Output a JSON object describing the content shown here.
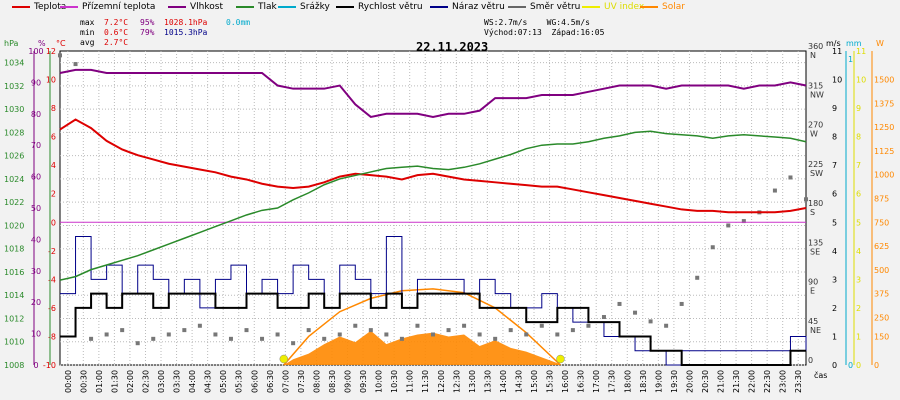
{
  "legend": [
    {
      "label": "Teplota",
      "color": "#dd0000"
    },
    {
      "label": "Přízemní teplota",
      "color": "#cc33cc"
    },
    {
      "label": "Vlhkost",
      "color": "#800080"
    },
    {
      "label": "Tlak",
      "color": "#2a8a2a"
    },
    {
      "label": "Srážky",
      "color": "#00aacc"
    },
    {
      "label": "Rychlost větru",
      "color": "#000000"
    },
    {
      "label": "Náraz větru",
      "color": "#000088"
    },
    {
      "label": "Směr větru",
      "color": "#666666"
    },
    {
      "label": "UV index",
      "color": "#eeee00"
    },
    {
      "label": "Solar",
      "color": "#ff8800"
    }
  ],
  "stats": {
    "max_label": "max",
    "min_label": "min",
    "avg_label": "avg",
    "max_temp": "7.2°C",
    "min_temp": "0.6°C",
    "avg_temp": "2.7°C",
    "max_hum": "95%",
    "min_hum": "79%",
    "max_press": "1028.1hPa",
    "min_press": "1015.3hPa",
    "rain": "0.0mm",
    "ws": "WS:2.7m/s",
    "wg": "WG:4.5m/s",
    "sunrise": "Východ:07:13",
    "sunset": "Západ:16:05"
  },
  "chart_data": {
    "type": "line",
    "title": "22.11.2023",
    "xlabel": "čas",
    "x_ticks": [
      "00:00",
      "00:30",
      "01:00",
      "01:30",
      "02:00",
      "02:30",
      "03:00",
      "03:30",
      "04:00",
      "04:30",
      "05:00",
      "05:30",
      "06:00",
      "06:30",
      "07:00",
      "07:30",
      "08:00",
      "08:30",
      "09:00",
      "09:30",
      "10:00",
      "10:30",
      "11:00",
      "11:30",
      "12:00",
      "12:30",
      "13:00",
      "13:30",
      "14:00",
      "14:30",
      "15:00",
      "15:30",
      "16:00",
      "16:30",
      "17:00",
      "17:30",
      "18:00",
      "18:30",
      "19:00",
      "19:30",
      "20:00",
      "20:30",
      "21:00",
      "21:30",
      "22:00",
      "22:30",
      "23:00",
      "23:30"
    ],
    "axes": {
      "pressure": {
        "unit": "hPa",
        "ticks": [
          "1008",
          "1010",
          "1012",
          "1014",
          "1016",
          "1018",
          "1020",
          "1022",
          "1024",
          "1026",
          "1028",
          "1030",
          "1032",
          "1034"
        ],
        "range": [
          1008,
          1035
        ]
      },
      "humidity": {
        "unit": "%",
        "ticks": [
          "0",
          "10",
          "20",
          "30",
          "40",
          "50",
          "60",
          "70",
          "80",
          "90",
          "100"
        ],
        "range": [
          0,
          100
        ]
      },
      "temperature": {
        "unit": "°C",
        "ticks": [
          "-10",
          "-8",
          "-6",
          "-4",
          "-2",
          "0",
          "2",
          "4",
          "6",
          "8",
          "10",
          "12"
        ],
        "range": [
          -10,
          12
        ]
      },
      "wind_direction": {
        "ticks": [
          "0",
          "45 NE",
          "90 E",
          "135 SE",
          "180 S",
          "225 SW",
          "270 W",
          "315 NW",
          "360 N"
        ],
        "range": [
          0,
          360
        ]
      },
      "wind_speed": {
        "unit": "m/s",
        "ticks": [
          "0",
          "1",
          "2",
          "3",
          "4",
          "5",
          "6",
          "7",
          "8",
          "9",
          "10",
          "11"
        ],
        "range": [
          0,
          11
        ]
      },
      "rain": {
        "unit": "mm",
        "ticks": [
          "0",
          "1"
        ],
        "range": [
          0,
          1
        ]
      },
      "uv": {
        "ticks": [
          "0",
          "1",
          "2",
          "3",
          "4",
          "5",
          "6",
          "7",
          "8",
          "9",
          "10",
          "11"
        ],
        "range": [
          0,
          11
        ]
      },
      "solar": {
        "unit": "W",
        "ticks": [
          "0",
          "150",
          "250",
          "375",
          "500",
          "625",
          "750",
          "875",
          "1000",
          "1125",
          "1250",
          "1375",
          "1500"
        ],
        "range": [
          0,
          1650
        ]
      }
    },
    "series": [
      {
        "name": "Teplota",
        "axis": "temperature",
        "color": "#dd0000",
        "x": [
          0,
          0.5,
          1,
          1.5,
          2,
          2.5,
          3,
          3.5,
          4,
          4.5,
          5,
          5.5,
          6,
          6.5,
          7,
          7.5,
          8,
          8.5,
          9,
          9.5,
          10,
          10.5,
          11,
          11.5,
          12,
          12.5,
          13,
          13.5,
          14,
          14.5,
          15,
          15.5,
          16,
          16.5,
          17,
          17.5,
          18,
          18.5,
          19,
          19.5,
          20,
          20.5,
          21,
          21.5,
          22,
          22.5,
          23,
          23.5,
          24
        ],
        "y": [
          6.5,
          7.2,
          6.6,
          5.7,
          5.1,
          4.7,
          4.4,
          4.1,
          3.9,
          3.7,
          3.5,
          3.2,
          3.0,
          2.7,
          2.5,
          2.4,
          2.5,
          2.8,
          3.2,
          3.4,
          3.3,
          3.2,
          3.0,
          3.3,
          3.4,
          3.2,
          3.0,
          2.9,
          2.8,
          2.7,
          2.6,
          2.5,
          2.5,
          2.3,
          2.1,
          1.9,
          1.7,
          1.5,
          1.3,
          1.1,
          0.9,
          0.8,
          0.8,
          0.7,
          0.7,
          0.7,
          0.7,
          0.8,
          1.0
        ]
      },
      {
        "name": "Přízemní teplota",
        "axis": "temperature",
        "color": "#cc33cc",
        "x": [
          0,
          24
        ],
        "y": [
          0,
          0
        ]
      },
      {
        "name": "Vlhkost",
        "axis": "humidity",
        "color": "#800080",
        "x": [
          0,
          0.5,
          1,
          1.5,
          2,
          2.5,
          3,
          3.5,
          4,
          4.5,
          5,
          5.5,
          6,
          6.5,
          7,
          7.5,
          8,
          8.5,
          9,
          9.5,
          10,
          10.5,
          11,
          11.5,
          12,
          12.5,
          13,
          13.5,
          14,
          14.5,
          15,
          15.5,
          16,
          16.5,
          17,
          17.5,
          18,
          18.5,
          19,
          19.5,
          20,
          20.5,
          21,
          21.5,
          22,
          22.5,
          23,
          23.5,
          24
        ],
        "y": [
          93,
          94,
          94,
          93,
          93,
          93,
          93,
          93,
          93,
          93,
          93,
          93,
          93,
          93,
          89,
          88,
          88,
          88,
          89,
          83,
          79,
          80,
          80,
          80,
          79,
          80,
          80,
          81,
          85,
          85,
          85,
          86,
          86,
          86,
          87,
          88,
          89,
          89,
          89,
          88,
          89,
          89,
          89,
          89,
          88,
          89,
          89,
          90,
          89
        ]
      },
      {
        "name": "Tlak",
        "axis": "pressure",
        "color": "#2a8a2a",
        "x": [
          0,
          0.5,
          1,
          1.5,
          2,
          2.5,
          3,
          3.5,
          4,
          4.5,
          5,
          5.5,
          6,
          6.5,
          7,
          7.5,
          8,
          8.5,
          9,
          9.5,
          10,
          10.5,
          11,
          11.5,
          12,
          12.5,
          13,
          13.5,
          14,
          14.5,
          15,
          15.5,
          16,
          16.5,
          17,
          17.5,
          18,
          18.5,
          19,
          19.5,
          20,
          20.5,
          21,
          21.5,
          22,
          22.5,
          23,
          23.5,
          24
        ],
        "y": [
          1015.3,
          1015.6,
          1016.2,
          1016.6,
          1017.0,
          1017.4,
          1017.9,
          1018.4,
          1018.9,
          1019.4,
          1019.9,
          1020.4,
          1020.9,
          1021.3,
          1021.5,
          1022.2,
          1022.8,
          1023.5,
          1024.0,
          1024.3,
          1024.6,
          1024.9,
          1025.0,
          1025.1,
          1024.9,
          1024.8,
          1025.0,
          1025.3,
          1025.7,
          1026.1,
          1026.6,
          1026.9,
          1027.0,
          1027.0,
          1027.2,
          1027.5,
          1027.7,
          1028.0,
          1028.1,
          1027.9,
          1027.8,
          1027.7,
          1027.5,
          1027.7,
          1027.8,
          1027.7,
          1027.6,
          1027.5,
          1027.2
        ]
      },
      {
        "name": "Srážky",
        "axis": "rain",
        "color": "#00aacc",
        "x": [
          0,
          24
        ],
        "y": [
          0,
          0
        ]
      },
      {
        "name": "Rychlost větru",
        "axis": "wind_speed",
        "color": "#000000",
        "x": [
          0,
          0.5,
          1,
          1.5,
          2,
          2.5,
          3,
          3.5,
          4,
          4.5,
          5,
          5.5,
          6,
          6.5,
          7,
          7.5,
          8,
          8.5,
          9,
          9.5,
          10,
          10.5,
          11,
          11.5,
          12,
          12.5,
          13,
          13.5,
          14,
          14.5,
          15,
          15.5,
          16,
          16.5,
          17,
          17.5,
          18,
          18.5,
          19,
          19.5,
          20,
          20.5,
          21,
          21.5,
          22,
          22.5,
          23,
          23.5,
          24
        ],
        "y": [
          1.0,
          2.0,
          2.5,
          2.0,
          2.5,
          2.5,
          2.0,
          2.5,
          2.5,
          2.5,
          2.0,
          2.0,
          2.5,
          2.5,
          2.0,
          2.0,
          2.5,
          2.0,
          2.5,
          2.5,
          2.0,
          2.5,
          2.0,
          2.5,
          2.5,
          2.5,
          2.5,
          2.0,
          2.0,
          2.0,
          1.5,
          1.5,
          2.0,
          2.0,
          1.5,
          1.5,
          1.0,
          1.0,
          0.5,
          0.5,
          0,
          0,
          0,
          0,
          0,
          0,
          0,
          0.5,
          0.5
        ]
      },
      {
        "name": "Náraz větru",
        "axis": "wind_speed",
        "color": "#000088",
        "x": [
          0,
          0.5,
          1,
          1.5,
          2,
          2.5,
          3,
          3.5,
          4,
          4.5,
          5,
          5.5,
          6,
          6.5,
          7,
          7.5,
          8,
          8.5,
          9,
          9.5,
          10,
          10.5,
          11,
          11.5,
          12,
          12.5,
          13,
          13.5,
          14,
          14.5,
          15,
          15.5,
          16,
          16.5,
          17,
          17.5,
          18,
          18.5,
          19,
          19.5,
          20,
          20.5,
          21,
          21.5,
          22,
          22.5,
          23,
          23.5,
          24
        ],
        "y": [
          2.5,
          4.5,
          3.0,
          3.5,
          2.5,
          3.5,
          3.0,
          2.5,
          3.0,
          2.0,
          3.0,
          3.5,
          2.5,
          3.0,
          2.5,
          3.5,
          3.0,
          2.0,
          3.5,
          3.0,
          2.5,
          4.5,
          2.0,
          3.0,
          3.0,
          3.0,
          2.5,
          3.0,
          2.5,
          2.0,
          2.0,
          2.5,
          2.0,
          1.5,
          1.5,
          1.0,
          1.0,
          0.5,
          0.5,
          0,
          0.5,
          0.5,
          0.5,
          0.5,
          0.5,
          0.5,
          0.5,
          1.0,
          0.5
        ]
      },
      {
        "name": "Směr větru",
        "axis": "wind_direction",
        "color": "#666666",
        "x": [
          0,
          0.5,
          1,
          1.5,
          2,
          2.5,
          3,
          3.5,
          4,
          4.5,
          5,
          5.5,
          6,
          6.5,
          7,
          7.5,
          8,
          8.5,
          9,
          9.5,
          10,
          10.5,
          11,
          11.5,
          12,
          12.5,
          13,
          13.5,
          14,
          14.5,
          15,
          15.5,
          16,
          16.5,
          17,
          17.5,
          18,
          18.5,
          19,
          19.5,
          20,
          20.5,
          21,
          21.5,
          22,
          22.5,
          23,
          23.5,
          24
        ],
        "y": [
          355,
          345,
          30,
          35,
          40,
          25,
          30,
          35,
          40,
          45,
          35,
          30,
          40,
          30,
          35,
          25,
          40,
          30,
          35,
          45,
          40,
          35,
          30,
          45,
          35,
          40,
          45,
          35,
          30,
          40,
          35,
          45,
          35,
          40,
          45,
          55,
          70,
          60,
          50,
          45,
          70,
          100,
          135,
          160,
          165,
          175,
          200,
          215,
          190
        ]
      },
      {
        "name": "UV index",
        "axis": "uv",
        "color": "#eeee00",
        "x": [
          7.2,
          16.1
        ],
        "y": [
          0.3,
          0.3
        ]
      },
      {
        "name": "Solar",
        "axis": "solar",
        "color": "#ff8800",
        "x": [
          7.2,
          7.5,
          8,
          8.5,
          9,
          9.5,
          10,
          10.5,
          11,
          11.5,
          12,
          12.5,
          13,
          13.5,
          14,
          14.5,
          15,
          15.5,
          16,
          16.1
        ],
        "y": [
          0,
          30,
          60,
          110,
          150,
          120,
          180,
          110,
          140,
          160,
          170,
          150,
          160,
          100,
          130,
          90,
          70,
          40,
          10,
          0
        ]
      },
      {
        "name": "Solar max",
        "axis": "solar",
        "color": "#ff8800",
        "x": [
          7.2,
          8,
          9,
          10,
          11,
          12,
          13,
          14,
          15,
          16.1
        ],
        "y": [
          0,
          150,
          280,
          350,
          390,
          400,
          380,
          300,
          170,
          0
        ]
      }
    ]
  }
}
